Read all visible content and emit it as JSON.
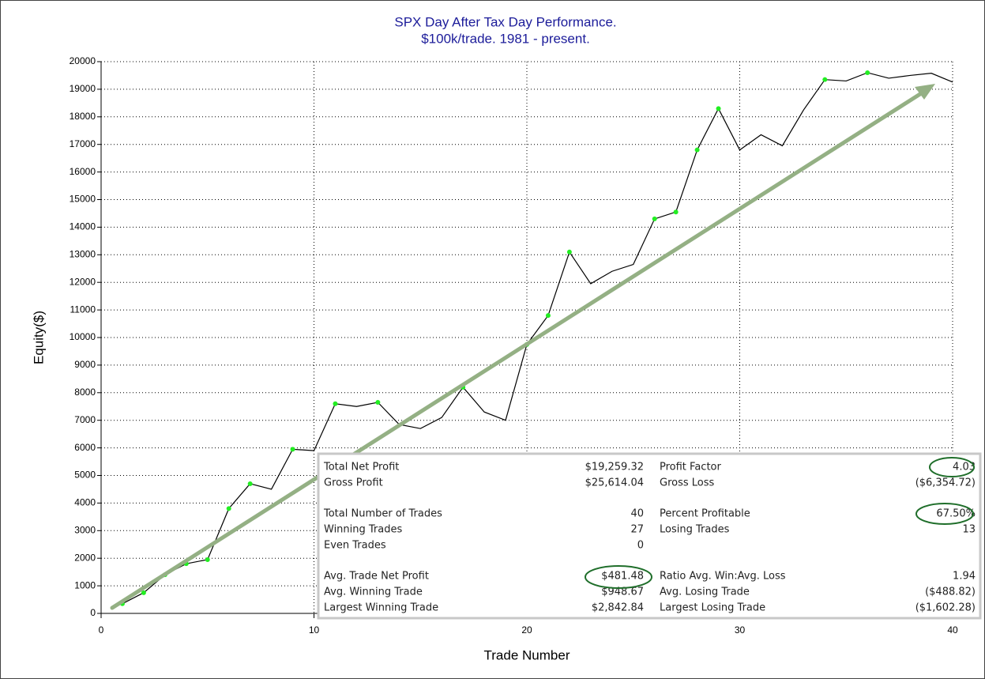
{
  "chart_data": {
    "type": "line",
    "title": "SPX Day After Tax Day Performance.",
    "subtitle": "$100k/trade. 1981 - present.",
    "x_label": "Trade Number",
    "y_label": "Equity($)",
    "x": [
      1,
      2,
      3,
      4,
      5,
      6,
      7,
      8,
      9,
      10,
      11,
      12,
      13,
      14,
      15,
      16,
      17,
      18,
      19,
      20,
      21,
      22,
      23,
      24,
      25,
      26,
      27,
      28,
      29,
      30,
      31,
      32,
      33,
      34,
      35,
      36,
      37,
      38,
      39,
      40
    ],
    "series": [
      {
        "name": "Equity",
        "color": "#000000",
        "marker_color": "#22ee22",
        "values": [
          350,
          750,
          1400,
          1800,
          1950,
          3800,
          4700,
          4500,
          5950,
          5900,
          7600,
          7500,
          7650,
          6850,
          6700,
          7100,
          8200,
          7300,
          7000,
          9750,
          10800,
          13100,
          11950,
          12400,
          12650,
          14300,
          14550,
          16800,
          18300,
          16800,
          17350,
          16950,
          18250,
          19350,
          19300,
          19600,
          19400,
          19500,
          19580,
          19259.32
        ]
      }
    ],
    "xlim": [
      0,
      40
    ],
    "xticks": [
      0,
      10,
      20,
      30,
      40
    ],
    "ylim": [
      0,
      20000
    ],
    "yticks": [
      0,
      1000,
      2000,
      3000,
      4000,
      5000,
      6000,
      7000,
      8000,
      9000,
      10000,
      11000,
      12000,
      13000,
      14000,
      15000,
      16000,
      17000,
      18000,
      19000,
      20000
    ],
    "grid": true
  },
  "stats": [
    [
      {
        "left": [
          "Total Net Profit",
          "$19,259.32"
        ],
        "right": [
          "Profit Factor",
          "4.03"
        ]
      },
      {
        "left": [
          "Gross Profit",
          "$25,614.04"
        ],
        "right": [
          "Gross Loss",
          "($6,354.72)"
        ]
      }
    ],
    [
      {
        "left": [
          "Total Number of Trades",
          "40"
        ],
        "right": [
          "Percent Profitable",
          "67.50%"
        ]
      },
      {
        "left": [
          "Winning Trades",
          "27"
        ],
        "right": [
          "Losing Trades",
          "13"
        ]
      },
      {
        "left": [
          "Even Trades",
          "0"
        ]
      }
    ],
    [
      {
        "left": [
          "Avg. Trade Net Profit",
          "$481.48"
        ],
        "right": [
          "Ratio Avg. Win:Avg. Loss",
          "1.94"
        ]
      },
      {
        "left": [
          "Avg. Winning Trade",
          "$948.67"
        ],
        "right": [
          "Avg. Losing Trade",
          "($488.82)"
        ]
      },
      {
        "left": [
          "Largest Winning Trade",
          "$2,842.84"
        ],
        "right": [
          "Largest Losing Trade",
          "($1,602.28)"
        ]
      }
    ]
  ]
}
